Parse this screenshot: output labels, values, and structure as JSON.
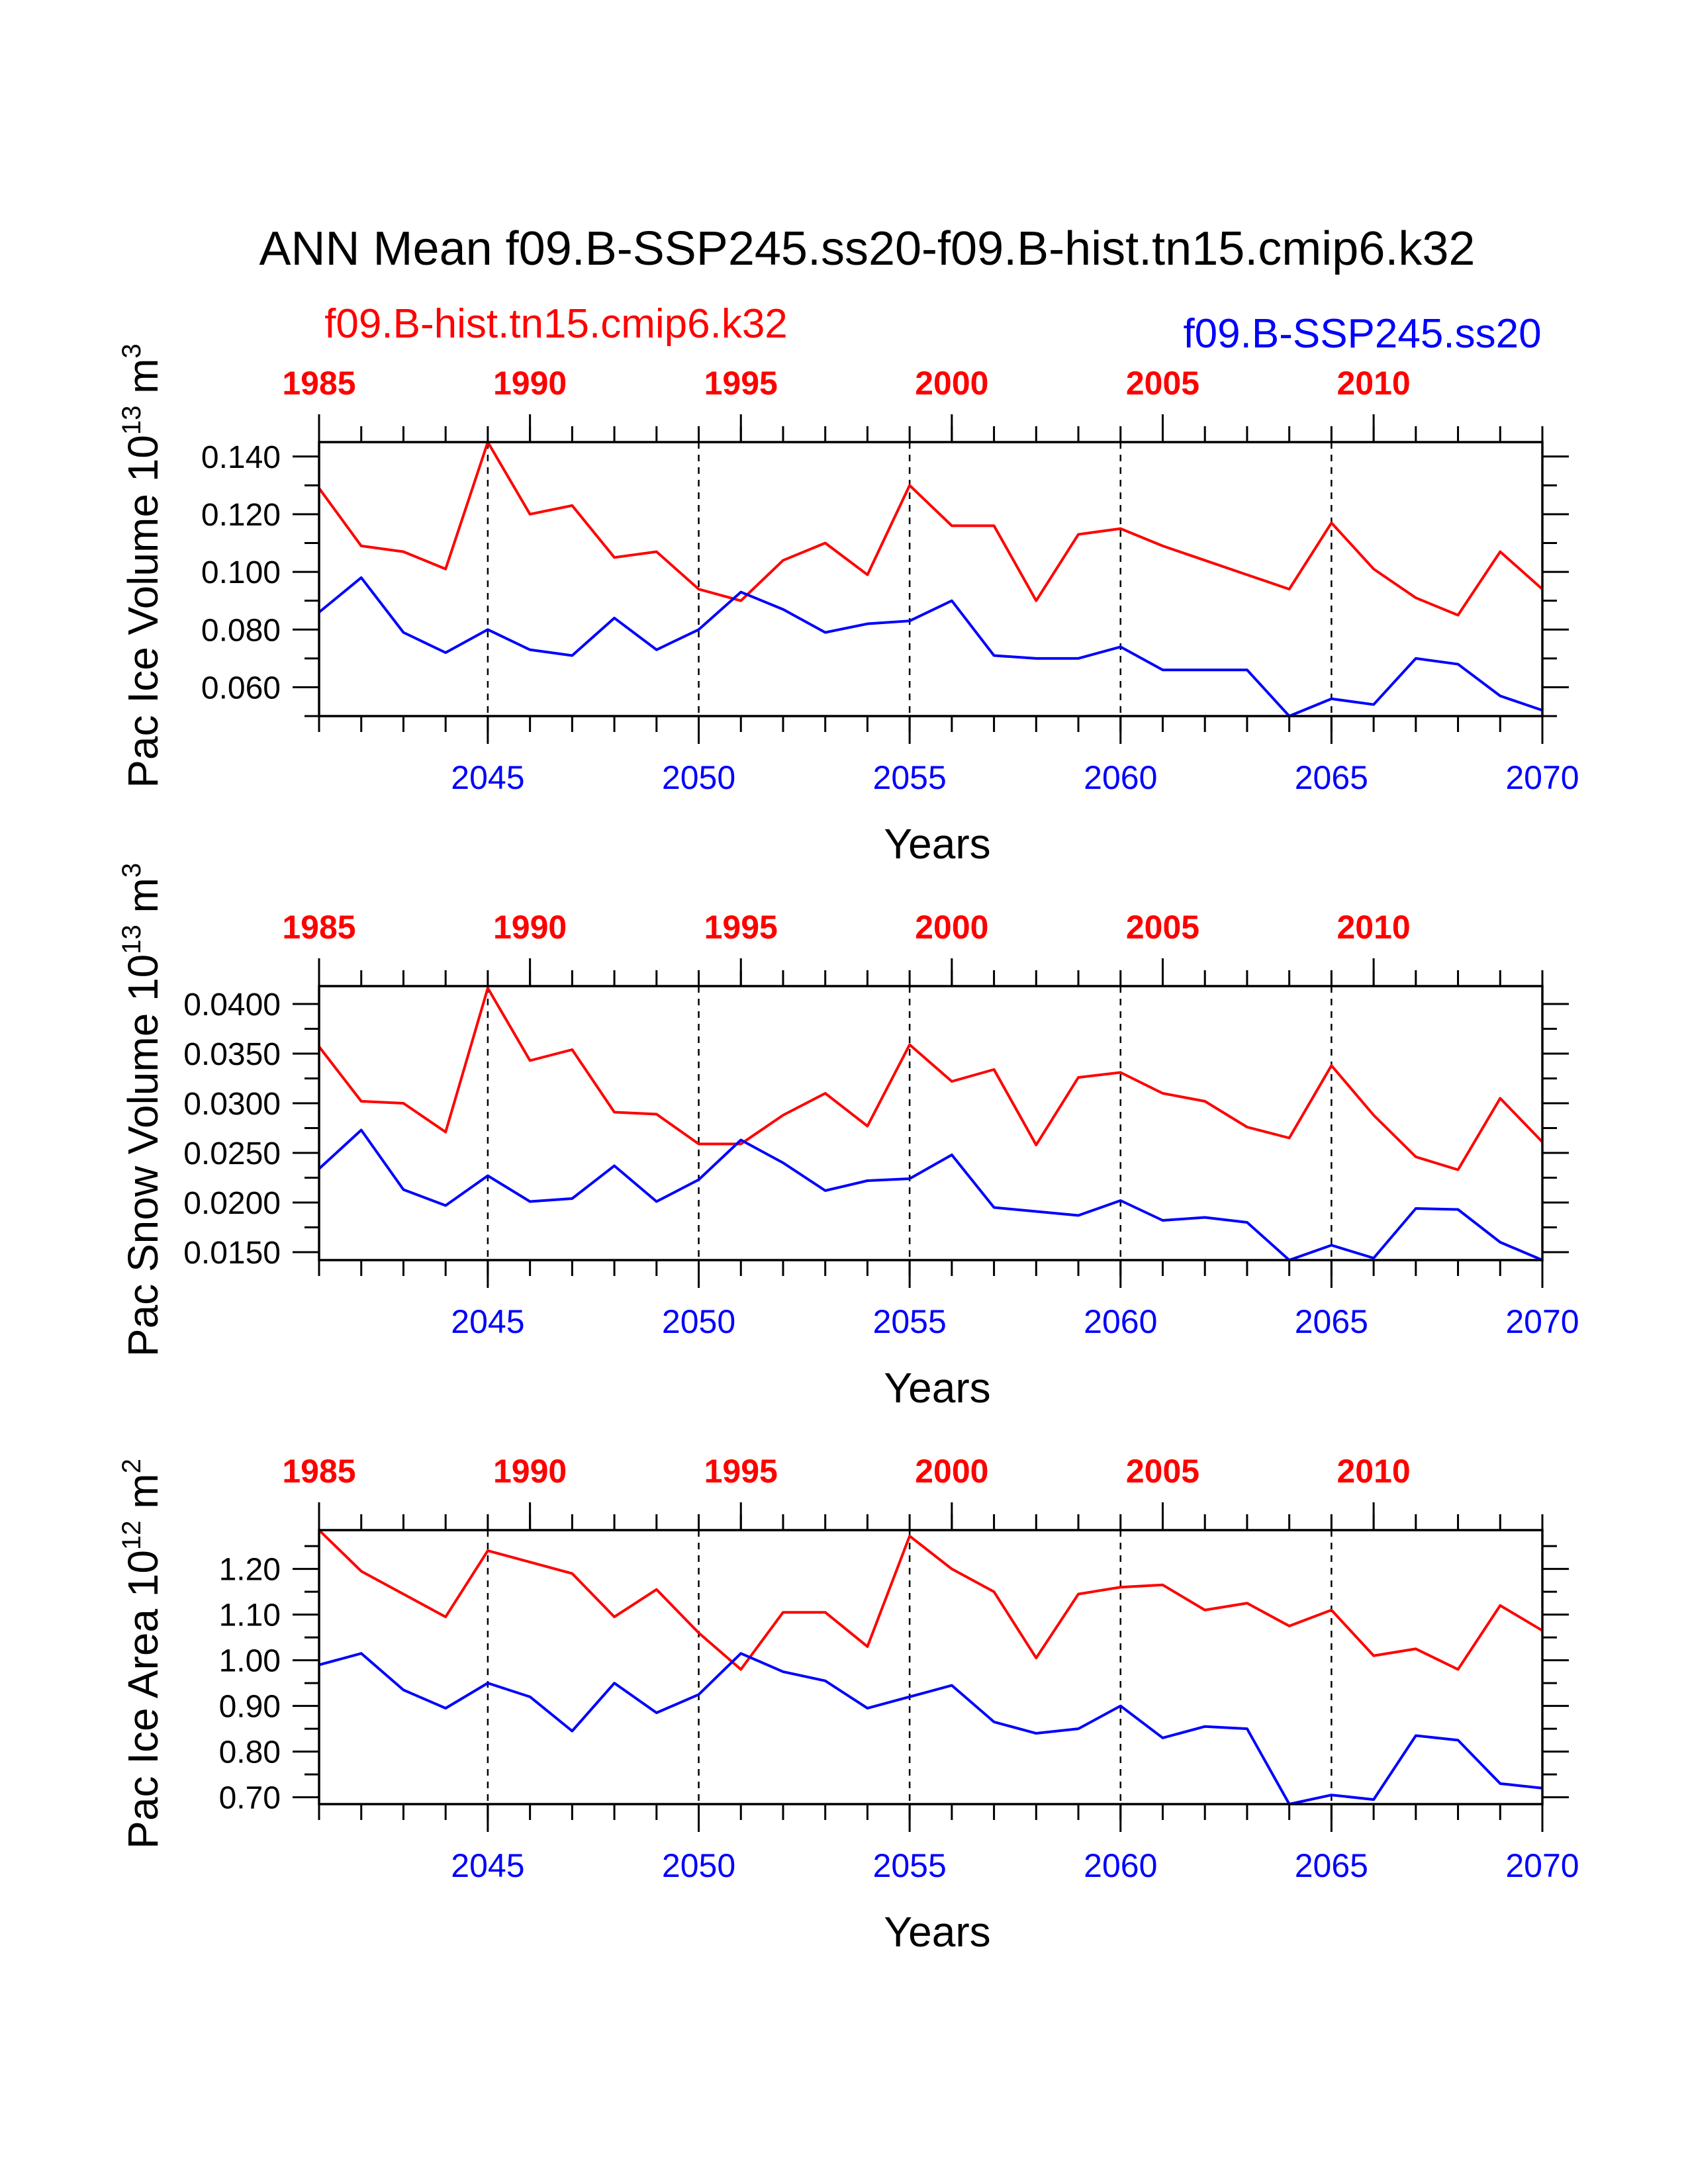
{
  "title": "ANN Mean f09.B-SSP245.ss20-f09.B-hist.tn15.cmip6.k32",
  "legend": {
    "red_label": "f09.B-hist.tn15.cmip6.k32",
    "blue_label": "f09.B-SSP245.ss20"
  },
  "colors": {
    "red": "#ff0000",
    "blue": "#0000ff",
    "axis": "#000000"
  },
  "chart_data": [
    {
      "type": "line",
      "ylabel": {
        "prefix": "Pac Ice Volume 10",
        "exp": "13",
        "unit": " m",
        "unit_exp": "3"
      },
      "xlabel": "Years",
      "bottom_ticks": [
        2045,
        2050,
        2055,
        2060,
        2065,
        2070
      ],
      "top_ticks": [
        1985,
        1990,
        1995,
        2000,
        2005,
        2010
      ],
      "yticks": [
        "0.140",
        "0.120",
        "0.100",
        "0.080",
        "0.060"
      ],
      "ylim": [
        0.05,
        0.145
      ],
      "xlim": [
        2041,
        2070
      ],
      "grid": "vertical dashed at bottom major ticks",
      "series": [
        {
          "name": "f09.B-hist.tn15.cmip6.k32",
          "color": "#ff0000",
          "x": [
            2041,
            2042,
            2043,
            2044,
            2045,
            2046,
            2047,
            2048,
            2049,
            2050,
            2051,
            2052,
            2053,
            2054,
            2055,
            2056,
            2057,
            2058,
            2059,
            2060,
            2061,
            2062,
            2063,
            2064,
            2065,
            2066,
            2067,
            2068,
            2069,
            2070
          ],
          "values": [
            0.129,
            0.109,
            0.107,
            0.101,
            0.145,
            0.12,
            0.123,
            0.105,
            0.107,
            0.094,
            0.09,
            0.104,
            0.11,
            0.099,
            0.13,
            0.116,
            0.116,
            0.09,
            0.113,
            0.115,
            0.109,
            0.104,
            0.099,
            0.094,
            0.117,
            0.101,
            0.091,
            0.085,
            0.107,
            0.094
          ]
        },
        {
          "name": "f09.B-SSP245.ss20",
          "color": "#0000ff",
          "x": [
            2041,
            2042,
            2043,
            2044,
            2045,
            2046,
            2047,
            2048,
            2049,
            2050,
            2051,
            2052,
            2053,
            2054,
            2055,
            2056,
            2057,
            2058,
            2059,
            2060,
            2061,
            2062,
            2063,
            2064,
            2065,
            2066,
            2067,
            2068,
            2069,
            2070
          ],
          "values": [
            0.086,
            0.098,
            0.079,
            0.072,
            0.08,
            0.073,
            0.071,
            0.084,
            0.073,
            0.08,
            0.093,
            0.087,
            0.079,
            0.082,
            0.083,
            0.09,
            0.071,
            0.07,
            0.07,
            0.074,
            0.066,
            0.066,
            0.066,
            0.05,
            0.056,
            0.054,
            0.07,
            0.068,
            0.057,
            0.052
          ]
        }
      ]
    },
    {
      "type": "line",
      "ylabel": {
        "prefix": "Pac Snow Volume 10",
        "exp": "13",
        "unit": " m",
        "unit_exp": "3"
      },
      "xlabel": "Years",
      "bottom_ticks": [
        2045,
        2050,
        2055,
        2060,
        2065,
        2070
      ],
      "top_ticks": [
        1985,
        1990,
        1995,
        2000,
        2005,
        2010
      ],
      "yticks": [
        "0.0400",
        "0.0350",
        "0.0300",
        "0.0250",
        "0.0200",
        "0.0150"
      ],
      "ylim": [
        0.0142,
        0.0418
      ],
      "xlim": [
        2041,
        2070
      ],
      "grid": "vertical dashed at bottom major ticks",
      "series": [
        {
          "name": "f09.B-hist.tn15.cmip6.k32",
          "color": "#ff0000",
          "x": [
            2041,
            2042,
            2043,
            2044,
            2045,
            2046,
            2047,
            2048,
            2049,
            2050,
            2051,
            2052,
            2053,
            2054,
            2055,
            2056,
            2057,
            2058,
            2059,
            2060,
            2061,
            2062,
            2063,
            2064,
            2065,
            2066,
            2067,
            2068,
            2069,
            2070
          ],
          "values": [
            0.0357,
            0.0302,
            0.03,
            0.0271,
            0.0416,
            0.0343,
            0.0354,
            0.0291,
            0.0289,
            0.0259,
            0.0259,
            0.0288,
            0.031,
            0.0277,
            0.0359,
            0.0322,
            0.0334,
            0.0258,
            0.0326,
            0.0331,
            0.031,
            0.0302,
            0.0276,
            0.0265,
            0.0338,
            0.0288,
            0.0246,
            0.0233,
            0.0305,
            0.0261
          ]
        },
        {
          "name": "f09.B-SSP245.ss20",
          "color": "#0000ff",
          "x": [
            2041,
            2042,
            2043,
            2044,
            2045,
            2046,
            2047,
            2048,
            2049,
            2050,
            2051,
            2052,
            2053,
            2054,
            2055,
            2056,
            2057,
            2058,
            2059,
            2060,
            2061,
            2062,
            2063,
            2064,
            2065,
            2066,
            2067,
            2068,
            2069,
            2070
          ],
          "values": [
            0.0234,
            0.0273,
            0.0213,
            0.0197,
            0.0227,
            0.0201,
            0.0204,
            0.0237,
            0.0201,
            0.0223,
            0.0263,
            0.024,
            0.0212,
            0.0222,
            0.0224,
            0.0248,
            0.0195,
            0.0191,
            0.0187,
            0.0202,
            0.0182,
            0.0185,
            0.018,
            0.0142,
            0.0157,
            0.0144,
            0.0194,
            0.0193,
            0.016,
            0.0142
          ]
        }
      ]
    },
    {
      "type": "line",
      "ylabel": {
        "prefix": "Pac Ice Area 10",
        "exp": "12",
        "unit": " m",
        "unit_exp": "2"
      },
      "xlabel": "Years",
      "bottom_ticks": [
        2045,
        2050,
        2055,
        2060,
        2065,
        2070
      ],
      "top_ticks": [
        1985,
        1990,
        1995,
        2000,
        2005,
        2010
      ],
      "yticks": [
        "1.20",
        "1.10",
        "1.00",
        "0.90",
        "0.80",
        "0.70"
      ],
      "ylim": [
        0.685,
        1.285
      ],
      "xlim": [
        2041,
        2070
      ],
      "grid": "vertical dashed at bottom major ticks",
      "series": [
        {
          "name": "f09.B-hist.tn15.cmip6.k32",
          "color": "#ff0000",
          "x": [
            2041,
            2042,
            2043,
            2044,
            2045,
            2046,
            2047,
            2048,
            2049,
            2050,
            2051,
            2052,
            2053,
            2054,
            2055,
            2056,
            2057,
            2058,
            2059,
            2060,
            2061,
            2062,
            2063,
            2064,
            2065,
            2066,
            2067,
            2068,
            2069,
            2070
          ],
          "values": [
            1.285,
            1.195,
            1.145,
            1.095,
            1.24,
            1.215,
            1.19,
            1.095,
            1.155,
            1.06,
            0.98,
            1.105,
            1.105,
            1.03,
            1.272,
            1.2,
            1.15,
            1.005,
            1.145,
            1.16,
            1.165,
            1.11,
            1.125,
            1.075,
            1.11,
            1.01,
            1.025,
            0.98,
            1.12,
            1.065
          ]
        },
        {
          "name": "f09.B-SSP245.ss20",
          "color": "#0000ff",
          "x": [
            2041,
            2042,
            2043,
            2044,
            2045,
            2046,
            2047,
            2048,
            2049,
            2050,
            2051,
            2052,
            2053,
            2054,
            2055,
            2056,
            2057,
            2058,
            2059,
            2060,
            2061,
            2062,
            2063,
            2064,
            2065,
            2066,
            2067,
            2068,
            2069,
            2070
          ],
          "values": [
            0.99,
            1.015,
            0.935,
            0.895,
            0.95,
            0.92,
            0.845,
            0.95,
            0.885,
            0.925,
            1.015,
            0.975,
            0.955,
            0.895,
            0.92,
            0.945,
            0.865,
            0.84,
            0.85,
            0.9,
            0.83,
            0.855,
            0.85,
            0.685,
            0.705,
            0.695,
            0.835,
            0.825,
            0.73,
            0.72
          ]
        }
      ]
    }
  ]
}
